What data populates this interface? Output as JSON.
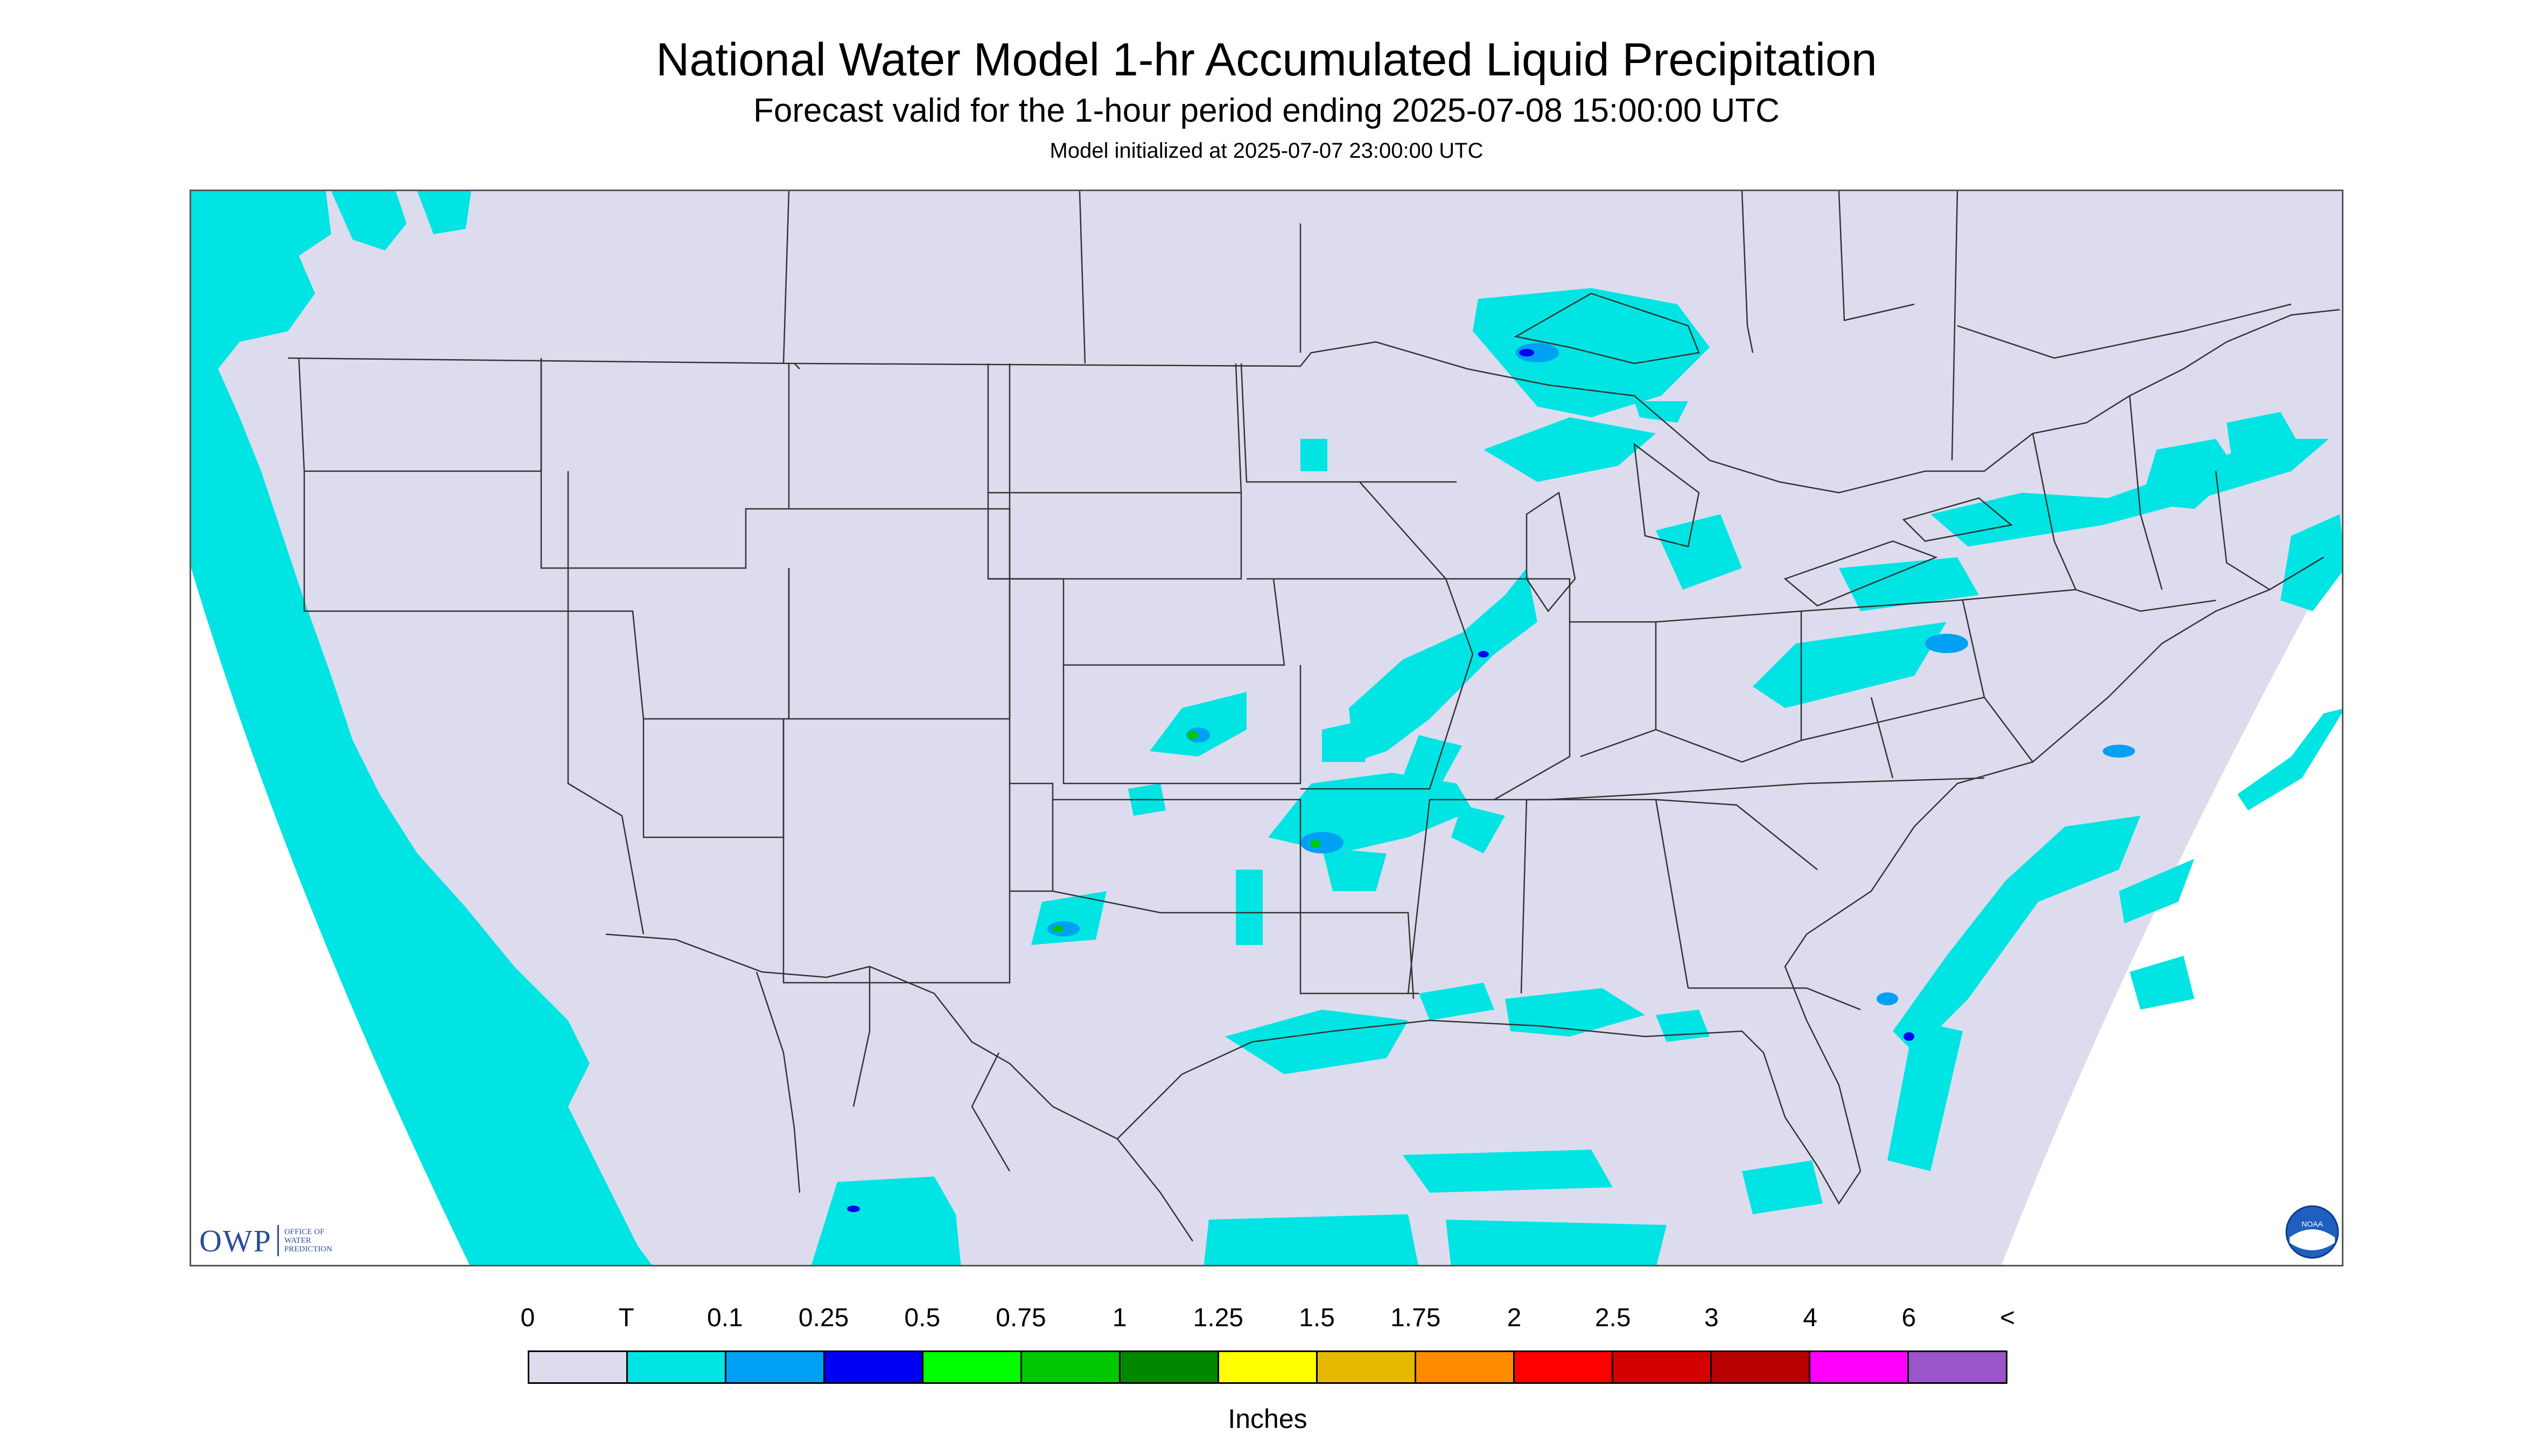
{
  "header": {
    "title": "National Water Model 1-hr Accumulated Liquid Precipitation",
    "subtitle": "Forecast valid for the 1-hour period ending 2025-07-08 15:00:00 UTC",
    "init_line": "Model initialized at 2025-07-07 23:00:00 UTC"
  },
  "logos": {
    "owp_text": "OWP",
    "owp_sub_lines": [
      "OFFICE OF",
      "WATER",
      "PREDICTION"
    ],
    "noaa_text": "NOAA"
  },
  "legend": {
    "tick_labels": [
      "0",
      "T",
      "0.1",
      "0.25",
      "0.5",
      "0.75",
      "1",
      "1.25",
      "1.5",
      "1.75",
      "2",
      "2.5",
      "3",
      "4",
      "6",
      "<"
    ],
    "colors": [
      "#dcdcee",
      "#00e4e4",
      "#00a0f4",
      "#0000f4",
      "#00ff00",
      "#00c800",
      "#008800",
      "#ffff00",
      "#e6b800",
      "#ff8c00",
      "#ff0000",
      "#d40000",
      "#b80000",
      "#ff00ff",
      "#9955c9"
    ],
    "units": "Inches"
  },
  "colors": {
    "domain_fill": "#dcdcee",
    "light_precip": "#00e4e4",
    "moderate_precip": "#00a0f4",
    "heavy_precip": "#0000f4",
    "border_lines": "#333333"
  }
}
